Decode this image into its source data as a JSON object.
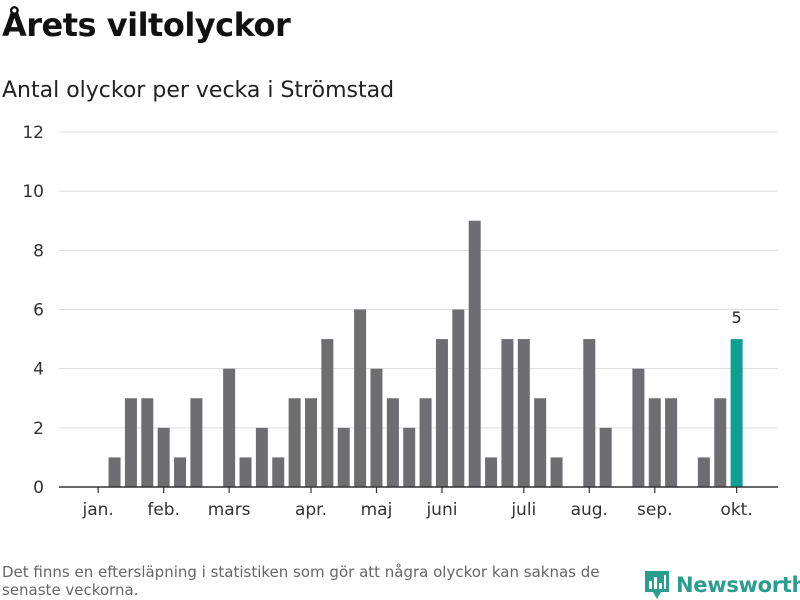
{
  "header": {
    "title": "Årets viltolyckor",
    "subtitle": "Antal olyckor per vecka i Strömstad"
  },
  "footer": {
    "note": "Det finns en eftersläpning i statistiken som gör att några olyckor kan saknas de senaste veckorna.",
    "brand": "Newsworthy",
    "brand_icon": "newsworthy-logo-icon"
  },
  "colors": {
    "bar": "#6e6d72",
    "highlight": "#0f9e94",
    "grid": "#dddddd",
    "axis": "#333333",
    "brand": "#2a9d8f"
  },
  "chart_data": {
    "type": "bar",
    "title": "Antal olyckor per vecka i Strömstad",
    "xlabel": "",
    "ylabel": "",
    "ylim": [
      0,
      12
    ],
    "yticks": [
      0,
      2,
      4,
      6,
      8,
      10,
      12
    ],
    "grid": true,
    "x": [
      1,
      2,
      3,
      4,
      5,
      6,
      7,
      8,
      9,
      10,
      11,
      12,
      13,
      14,
      15,
      16,
      17,
      18,
      19,
      20,
      21,
      22,
      23,
      24,
      25,
      26,
      27,
      28,
      29,
      30,
      31,
      32,
      33,
      34,
      35,
      36,
      37,
      38,
      39,
      40
    ],
    "values": [
      0,
      1,
      3,
      3,
      2,
      1,
      3,
      0,
      4,
      1,
      2,
      1,
      3,
      3,
      5,
      2,
      6,
      4,
      3,
      2,
      3,
      5,
      6,
      9,
      1,
      5,
      5,
      3,
      1,
      0,
      5,
      2,
      0,
      4,
      3,
      3,
      0,
      1,
      3,
      5
    ],
    "highlight_index": 39,
    "data_labels": [
      {
        "index": 39,
        "text": "5"
      }
    ],
    "month_ticks": [
      {
        "label": "jan.",
        "position": 1
      },
      {
        "label": "feb.",
        "position": 5
      },
      {
        "label": "mars",
        "position": 9
      },
      {
        "label": "apr.",
        "position": 14
      },
      {
        "label": "maj",
        "position": 18
      },
      {
        "label": "juni",
        "position": 22
      },
      {
        "label": "juli",
        "position": 27
      },
      {
        "label": "aug.",
        "position": 31
      },
      {
        "label": "sep.",
        "position": 35
      },
      {
        "label": "okt.",
        "position": 40
      }
    ]
  }
}
